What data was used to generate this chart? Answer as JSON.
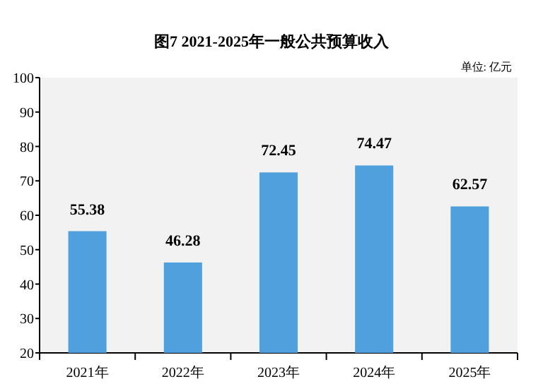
{
  "chart_data": {
    "type": "bar",
    "title": "图7 2021-2025年一般公共预算收入",
    "annotations": [
      "单位: 亿元"
    ],
    "categories": [
      "2021年",
      "2022年",
      "2023年",
      "2024年",
      "2025年"
    ],
    "values": [
      55.38,
      46.28,
      72.45,
      74.47,
      62.57
    ],
    "color": "#4fa0dc",
    "ylim": [
      20,
      100
    ],
    "yticks": [
      20,
      30,
      40,
      50,
      60,
      70,
      80,
      90,
      100
    ],
    "data_labels": true,
    "grid": false
  }
}
